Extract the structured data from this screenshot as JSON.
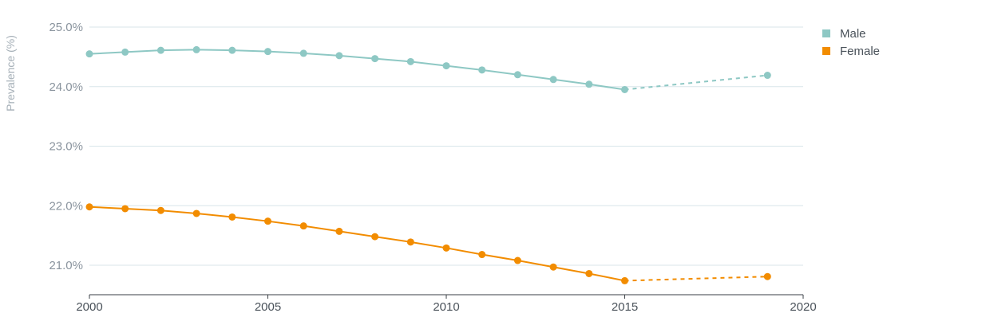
{
  "chart_data": {
    "type": "line",
    "title": "",
    "xlabel": "",
    "ylabel": "Prevalence (%)",
    "xlim": [
      2000,
      2020
    ],
    "ylim": [
      20.5,
      25.0
    ],
    "x_ticks": [
      2000,
      2005,
      2010,
      2015,
      2020
    ],
    "x_tick_labels": [
      "2000",
      "2005",
      "2010",
      "2015",
      "2020"
    ],
    "y_ticks": [
      21,
      22,
      23,
      24,
      25
    ],
    "y_tick_labels": [
      "21.0%",
      "22.0%",
      "23.0%",
      "24.0%",
      "25.0%"
    ],
    "grid": "horizontal",
    "legend_position": "top-right",
    "series": [
      {
        "name": "Male",
        "color": "#8ec8c4",
        "x": [
          2000,
          2001,
          2002,
          2003,
          2004,
          2005,
          2006,
          2007,
          2008,
          2009,
          2010,
          2011,
          2012,
          2013,
          2014,
          2015,
          2019
        ],
        "values": [
          24.55,
          24.58,
          24.61,
          24.62,
          24.61,
          24.59,
          24.56,
          24.52,
          24.47,
          24.42,
          24.35,
          24.28,
          24.2,
          24.12,
          24.04,
          23.95,
          24.19
        ],
        "dashed_from_x": 2015
      },
      {
        "name": "Female",
        "color": "#f28c00",
        "x": [
          2000,
          2001,
          2002,
          2003,
          2004,
          2005,
          2006,
          2007,
          2008,
          2009,
          2010,
          2011,
          2012,
          2013,
          2014,
          2015,
          2019
        ],
        "values": [
          21.98,
          21.95,
          21.92,
          21.87,
          21.81,
          21.74,
          21.66,
          21.57,
          21.48,
          21.39,
          21.29,
          21.18,
          21.08,
          20.97,
          20.86,
          20.74,
          20.81
        ],
        "dashed_from_x": 2015
      }
    ]
  }
}
